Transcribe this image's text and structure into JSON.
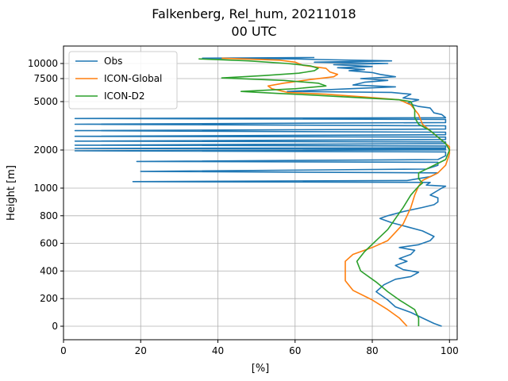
{
  "chart_data": {
    "type": "line",
    "title_line1": "Falkenberg, Rel_hum, 20211018",
    "title_line2": "00 UTC",
    "xlabel": "[%]",
    "ylabel": "Height [m]",
    "xlim": [
      0,
      102
    ],
    "xticks": [
      0,
      20,
      40,
      60,
      80,
      100
    ],
    "yticks": [
      {
        "value": 0,
        "label": "0"
      },
      {
        "value": 200,
        "label": "200"
      },
      {
        "value": 400,
        "label": "400"
      },
      {
        "value": 600,
        "label": "600"
      },
      {
        "value": 800,
        "label": "800"
      },
      {
        "value": 1000,
        "label": "1000"
      },
      {
        "value": 2000,
        "label": "2000"
      },
      {
        "value": 5000,
        "label": "5000"
      },
      {
        "value": 7500,
        "label": "7500"
      },
      {
        "value": 10000,
        "label": "10000"
      }
    ],
    "grid": true,
    "legend_position": "top-left",
    "colors": {
      "obs": "#1f77b4",
      "icon_global": "#ff7f0e",
      "icon_d2": "#2ca02c"
    },
    "series": [
      {
        "name": "Obs",
        "color": "#1f77b4",
        "points": [
          [
            98,
            0
          ],
          [
            96,
            20
          ],
          [
            93,
            60
          ],
          [
            90,
            100
          ],
          [
            86,
            140
          ],
          [
            84,
            190
          ],
          [
            81,
            250
          ],
          [
            83,
            300
          ],
          [
            86,
            340
          ],
          [
            90,
            360
          ],
          [
            92,
            390
          ],
          [
            88,
            410
          ],
          [
            86,
            440
          ],
          [
            89,
            470
          ],
          [
            87,
            490
          ],
          [
            90,
            520
          ],
          [
            91,
            550
          ],
          [
            87,
            570
          ],
          [
            92,
            590
          ],
          [
            95,
            620
          ],
          [
            96,
            650
          ],
          [
            93,
            690
          ],
          [
            89,
            720
          ],
          [
            85,
            750
          ],
          [
            82,
            780
          ],
          [
            84,
            800
          ],
          [
            88,
            830
          ],
          [
            93,
            860
          ],
          [
            96,
            880
          ],
          [
            97,
            900
          ],
          [
            97,
            930
          ],
          [
            95,
            950
          ],
          [
            98,
            1000
          ],
          [
            99,
            1050
          ],
          [
            94,
            1080
          ],
          [
            95,
            1150
          ],
          [
            18,
            1170
          ],
          [
            89,
            1200
          ],
          [
            95,
            1300
          ],
          [
            97,
            1400
          ],
          [
            20,
            1440
          ],
          [
            94,
            1500
          ],
          [
            97,
            1600
          ],
          [
            97,
            1680
          ],
          [
            19,
            1700
          ],
          [
            97,
            1750
          ],
          [
            99,
            1850
          ],
          [
            99,
            1950
          ],
          [
            3,
            1980
          ],
          [
            99,
            2010
          ],
          [
            99,
            2060
          ],
          [
            3,
            2100
          ],
          [
            99,
            2140
          ],
          [
            99,
            2250
          ],
          [
            3,
            2300
          ],
          [
            99,
            2400
          ],
          [
            99,
            2500
          ],
          [
            3,
            2550
          ],
          [
            99,
            2650
          ],
          [
            99,
            2800
          ],
          [
            3,
            2850
          ],
          [
            99,
            2950
          ],
          [
            99,
            3100
          ],
          [
            3,
            3200
          ],
          [
            99,
            3300
          ],
          [
            99,
            3500
          ],
          [
            3,
            3600
          ],
          [
            99,
            3700
          ],
          [
            99,
            3900
          ],
          [
            3,
            3950
          ],
          [
            99,
            4000
          ],
          [
            98,
            4200
          ],
          [
            96,
            4300
          ],
          [
            95,
            4600
          ],
          [
            92,
            4700
          ],
          [
            89,
            4900
          ],
          [
            92,
            5200
          ],
          [
            88,
            5400
          ],
          [
            90,
            5800
          ],
          [
            85,
            6000
          ],
          [
            58,
            6100
          ],
          [
            74,
            6400
          ],
          [
            86,
            6600
          ],
          [
            75,
            6800
          ],
          [
            78,
            7100
          ],
          [
            84,
            7300
          ],
          [
            77,
            7500
          ],
          [
            86,
            7800
          ],
          [
            82,
            8200
          ],
          [
            80,
            8500
          ],
          [
            74,
            8800
          ],
          [
            78,
            9000
          ],
          [
            71,
            9300
          ],
          [
            80,
            9500
          ],
          [
            70,
            9800
          ],
          [
            84,
            10000
          ],
          [
            65,
            10200
          ],
          [
            85,
            10400
          ],
          [
            66,
            10600
          ],
          [
            60,
            10700
          ],
          [
            36,
            10800
          ],
          [
            65,
            10900
          ]
        ]
      },
      {
        "name": "ICON-Global",
        "color": "#ff7f0e",
        "points": [
          [
            89,
            0
          ],
          [
            87,
            60
          ],
          [
            84,
            120
          ],
          [
            80,
            190
          ],
          [
            75,
            260
          ],
          [
            73,
            330
          ],
          [
            73,
            400
          ],
          [
            73,
            470
          ],
          [
            75,
            520
          ],
          [
            80,
            570
          ],
          [
            84,
            620
          ],
          [
            86,
            680
          ],
          [
            88,
            740
          ],
          [
            89,
            800
          ],
          [
            90,
            860
          ],
          [
            91,
            950
          ],
          [
            92,
            1050
          ],
          [
            93,
            1200
          ],
          [
            97,
            1400
          ],
          [
            99,
            1600
          ],
          [
            100,
            1900
          ],
          [
            100,
            2200
          ],
          [
            98,
            2600
          ],
          [
            96,
            3000
          ],
          [
            93,
            3600
          ],
          [
            92,
            4200
          ],
          [
            90,
            4800
          ],
          [
            87,
            5200
          ],
          [
            78,
            5500
          ],
          [
            68,
            5800
          ],
          [
            58,
            6000
          ],
          [
            54,
            6400
          ],
          [
            53,
            6700
          ],
          [
            57,
            7000
          ],
          [
            64,
            7400
          ],
          [
            70,
            7800
          ],
          [
            71,
            8200
          ],
          [
            69,
            8600
          ],
          [
            68,
            9200
          ],
          [
            62,
            9700
          ],
          [
            60,
            10200
          ],
          [
            56,
            10500
          ],
          [
            41,
            10800
          ]
        ]
      },
      {
        "name": "ICON-D2",
        "color": "#2ca02c",
        "points": [
          [
            92,
            0
          ],
          [
            92,
            60
          ],
          [
            91,
            120
          ],
          [
            87,
            190
          ],
          [
            84,
            250
          ],
          [
            81,
            320
          ],
          [
            77,
            400
          ],
          [
            76,
            470
          ],
          [
            78,
            540
          ],
          [
            81,
            620
          ],
          [
            84,
            700
          ],
          [
            86,
            780
          ],
          [
            88,
            860
          ],
          [
            90,
            950
          ],
          [
            92,
            1050
          ],
          [
            93,
            1130
          ],
          [
            92,
            1250
          ],
          [
            92,
            1400
          ],
          [
            95,
            1550
          ],
          [
            99,
            1750
          ],
          [
            100,
            2000
          ],
          [
            99,
            2400
          ],
          [
            97,
            2800
          ],
          [
            95,
            3200
          ],
          [
            92,
            3600
          ],
          [
            91,
            4000
          ],
          [
            91,
            4500
          ],
          [
            90,
            5000
          ],
          [
            87,
            5200
          ],
          [
            78,
            5400
          ],
          [
            65,
            5700
          ],
          [
            55,
            5900
          ],
          [
            46,
            6100
          ],
          [
            60,
            6400
          ],
          [
            68,
            6700
          ],
          [
            66,
            7000
          ],
          [
            57,
            7300
          ],
          [
            41,
            7600
          ],
          [
            52,
            8000
          ],
          [
            61,
            8400
          ],
          [
            65,
            8800
          ],
          [
            66,
            9200
          ],
          [
            64,
            9600
          ],
          [
            58,
            10000
          ],
          [
            48,
            10400
          ],
          [
            35,
            10700
          ]
        ]
      }
    ]
  }
}
